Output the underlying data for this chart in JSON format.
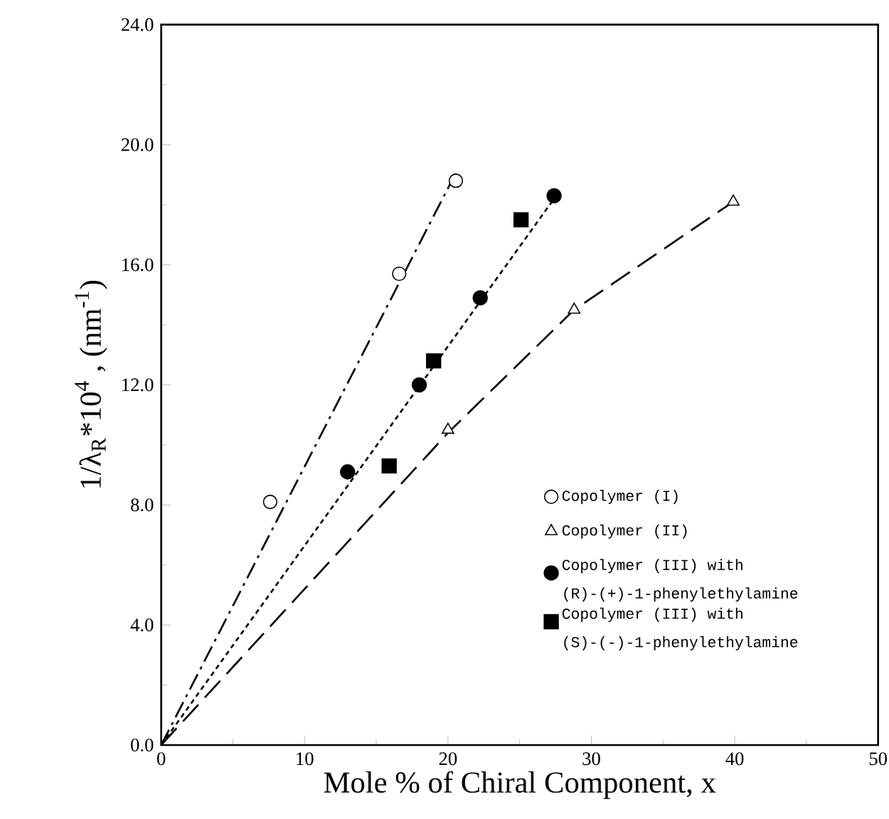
{
  "chart_data": {
    "type": "scatter",
    "xlabel": "Mole % of Chiral Component, x",
    "ylabel": "1/λ$_{R}$*10$^{4}$ , (nm$^{-1}$)",
    "xlim": [
      0,
      50
    ],
    "xticks": [
      0,
      10,
      20,
      30,
      40,
      50
    ],
    "ylim": [
      0,
      24
    ],
    "yticks": [
      {
        "value": 0,
        "label": "0.0"
      },
      {
        "value": 4,
        "label": "4.0"
      },
      {
        "value": 8,
        "label": "8.0"
      },
      {
        "value": 12,
        "label": "12.0"
      },
      {
        "value": 16,
        "label": "16.0"
      },
      {
        "value": 20,
        "label": "20.0"
      },
      {
        "value": 24,
        "label": "24.0"
      }
    ],
    "grid": false,
    "legend": "bottom right",
    "series": [
      {
        "name": "Copolymer (I)",
        "color": "#000000",
        "marker": "circle",
        "x": [
          7.6,
          16.6,
          20.55
        ],
        "values": [
          8.1,
          15.7,
          18.8
        ]
      },
      {
        "name": "Copolymer (II)",
        "color": "#000000",
        "marker": "triangle",
        "x": [
          20.0,
          28.8,
          39.9
        ],
        "values": [
          10.5,
          14.5,
          18.1
        ]
      },
      {
        "name": "Copolymer (III) with (R)-(+)-1-phenylethylamine",
        "color": "#000000",
        "marker": "circle",
        "x": [
          13.0,
          18.0,
          22.25,
          27.4
        ],
        "values": [
          9.1,
          12.0,
          14.9,
          18.3
        ]
      },
      {
        "name": "Copolymer (III) with (S)-(-)-1-phenylethylamine",
        "color": "#000000",
        "marker": "square",
        "x": [
          15.9,
          19.0,
          25.1
        ],
        "values": [
          9.3,
          12.8,
          17.5
        ]
      },
      {
        "type": "line",
        "color": "#000000",
        "line_style": "dashdot",
        "marker": "none",
        "x": [
          0,
          20.7
        ],
        "values": [
          0,
          19.2
        ]
      },
      {
        "type": "line",
        "color": "#000000",
        "line_style": "dashed",
        "marker": "none",
        "x": [
          0,
          20.0,
          28.8,
          39.9
        ],
        "values": [
          0,
          10.4,
          14.5,
          18.1
        ]
      },
      {
        "type": "line",
        "color": "#000000",
        "line_style": "dotted",
        "marker": "none",
        "x": [
          0,
          27.4
        ],
        "values": [
          0,
          18.2
        ]
      }
    ]
  }
}
